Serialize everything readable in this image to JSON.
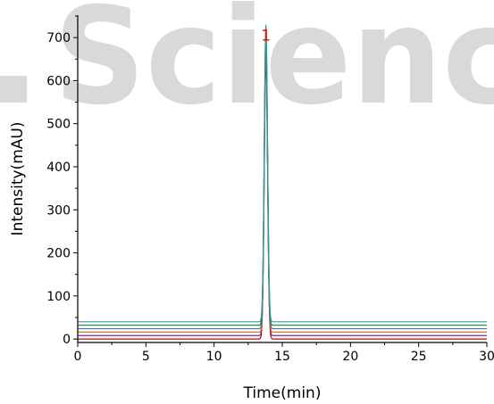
{
  "watermark": {
    "text": "Scienc",
    "color": "#d9d9d9"
  },
  "chart_data": {
    "type": "line",
    "xlabel": "Time(min)",
    "ylabel": "Intensity(mAU)",
    "xlim": [
      0,
      30
    ],
    "ylim": [
      -8,
      752
    ],
    "x_ticks": [
      0,
      5,
      10,
      15,
      20,
      25,
      30
    ],
    "y_ticks": [
      0,
      100,
      200,
      300,
      400,
      500,
      600,
      700
    ],
    "grid": false,
    "peak_time": 13.8,
    "peak_width_sigma": 0.12,
    "series": [
      {
        "color": "#c00000",
        "baseline": 0,
        "peak_height": 650
      },
      {
        "color": "#7030a0",
        "baseline": 8,
        "peak_height": 660
      },
      {
        "color": "#e07b00",
        "baseline": 16,
        "peak_height": 670
      },
      {
        "color": "#4472c4",
        "baseline": 24,
        "peak_height": 675
      },
      {
        "color": "#1a8a1a",
        "baseline": 32,
        "peak_height": 680
      },
      {
        "color": "#2e9aa8",
        "baseline": 40,
        "peak_height": 690
      }
    ],
    "annotations": [
      {
        "text": "1",
        "x": 13.8,
        "y": 705,
        "color": "#ff0000"
      }
    ]
  }
}
